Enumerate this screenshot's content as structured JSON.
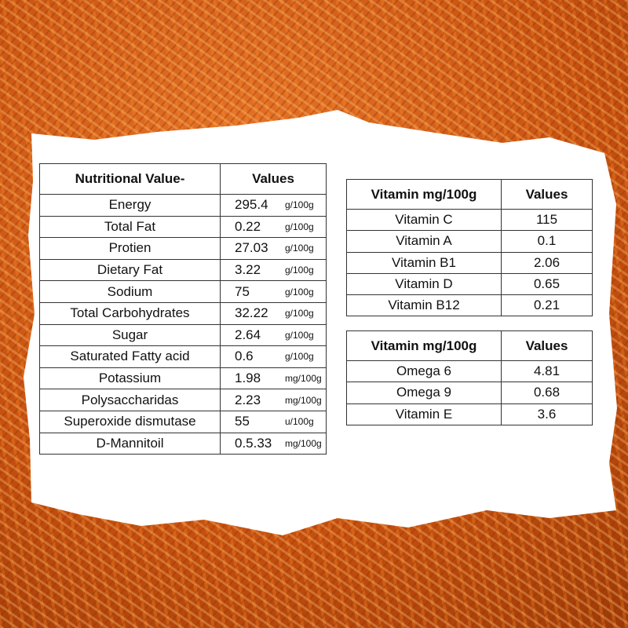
{
  "nutrition": {
    "header": [
      "Nutritional Value-",
      "Values"
    ],
    "rows": [
      {
        "name": "Energy",
        "value": "295.4",
        "unit": "g/100g"
      },
      {
        "name": "Total Fat",
        "value": "0.22",
        "unit": "g/100g"
      },
      {
        "name": "Protien",
        "value": "27.03",
        "unit": "g/100g"
      },
      {
        "name": "Dietary Fat",
        "value": "3.22",
        "unit": "g/100g"
      },
      {
        "name": "Sodium",
        "value": "75",
        "unit": "g/100g"
      },
      {
        "name": "Total Carbohydrates",
        "value": "32.22",
        "unit": "g/100g"
      },
      {
        "name": "Sugar",
        "value": "2.64",
        "unit": "g/100g"
      },
      {
        "name": "Saturated Fatty acid",
        "value": "0.6",
        "unit": "g/100g"
      },
      {
        "name": "Potassium",
        "value": "1.98",
        "unit": "mg/100g"
      },
      {
        "name": "Polysaccharidas",
        "value": "2.23",
        "unit": "mg/100g"
      },
      {
        "name": "Superoxide dismutase",
        "value": "55",
        "unit": "u/100g"
      },
      {
        "name": "D-Mannitoil",
        "value": "0.5.33",
        "unit": "mg/100g"
      }
    ]
  },
  "vitamins": {
    "header": [
      "Vitamin mg/100g",
      "Values"
    ],
    "rows": [
      {
        "name": "Vitamin C",
        "value": "115"
      },
      {
        "name": "Vitamin A",
        "value": "0.1"
      },
      {
        "name": "Vitamin B1",
        "value": "2.06"
      },
      {
        "name": "Vitamin D",
        "value": "0.65"
      },
      {
        "name": "Vitamin B12",
        "value": "0.21"
      }
    ]
  },
  "omegas": {
    "header": [
      "Vitamin mg/100g",
      "Values"
    ],
    "rows": [
      {
        "name": "Omega 6",
        "value": "4.81"
      },
      {
        "name": "Omega 9",
        "value": "0.68"
      },
      {
        "name": "Vitamin E",
        "value": "3.6"
      }
    ]
  }
}
